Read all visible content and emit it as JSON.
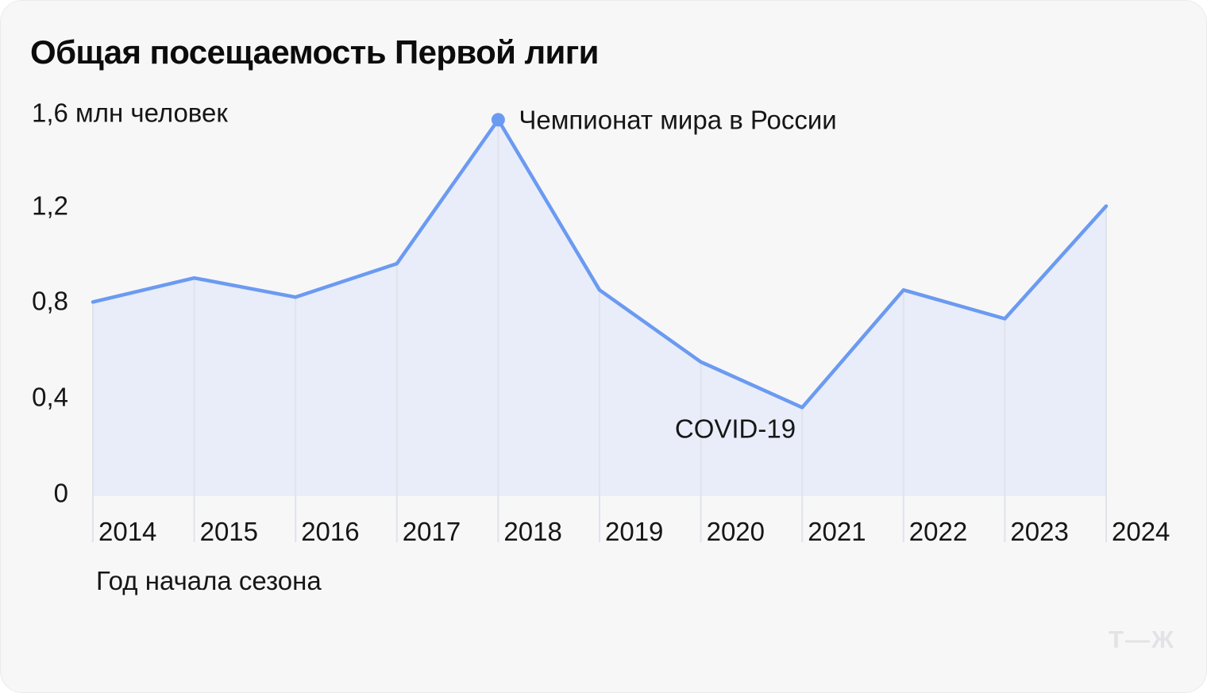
{
  "card": {
    "title": "Общая посещаемость Первой лиги"
  },
  "y_axis": {
    "unit_label": "1,6 млн человек",
    "ticks": [
      {
        "value": 1.2,
        "label": "1,2"
      },
      {
        "value": 0.8,
        "label": "0,8"
      },
      {
        "value": 0.4,
        "label": "0,4"
      },
      {
        "value": 0.0,
        "label": "0"
      }
    ]
  },
  "x_axis": {
    "title": "Год начала сезона"
  },
  "annotations": {
    "world_cup": {
      "text": "Чемпионат мира в России",
      "year": 2018,
      "value": 1.57
    },
    "covid": {
      "text": "COVID-19",
      "year": 2020.34,
      "value": 0.28
    }
  },
  "logo": "Т—Ж",
  "colors": {
    "line": "#6b9af1",
    "marker": "#6b9af1",
    "fill": "#e8edf9",
    "grid": "#e0e3ea",
    "background": "#f7f7f8",
    "text": "#161617",
    "title": "#0c0c0d",
    "logo": "#e2e3e5"
  },
  "chart_data": {
    "type": "area",
    "title": "Общая посещаемость Первой лиги",
    "xlabel": "Год начала сезона",
    "ylabel": "млн человек",
    "x": [
      2014,
      2015,
      2016,
      2017,
      2018,
      2019,
      2020,
      2021,
      2022,
      2023,
      2024
    ],
    "values": [
      0.81,
      0.91,
      0.83,
      0.97,
      1.57,
      0.86,
      0.56,
      0.37,
      0.86,
      0.74,
      1.21
    ],
    "ylim": [
      0,
      1.6
    ],
    "y_tick_step": 0.4,
    "grid": "vertical-year-lines-below-curve",
    "legend": "none",
    "marker": {
      "year": 2018,
      "label": "Чемпионат мира в России"
    },
    "annotation": {
      "label": "COVID-19",
      "near_year": 2020.34
    }
  }
}
